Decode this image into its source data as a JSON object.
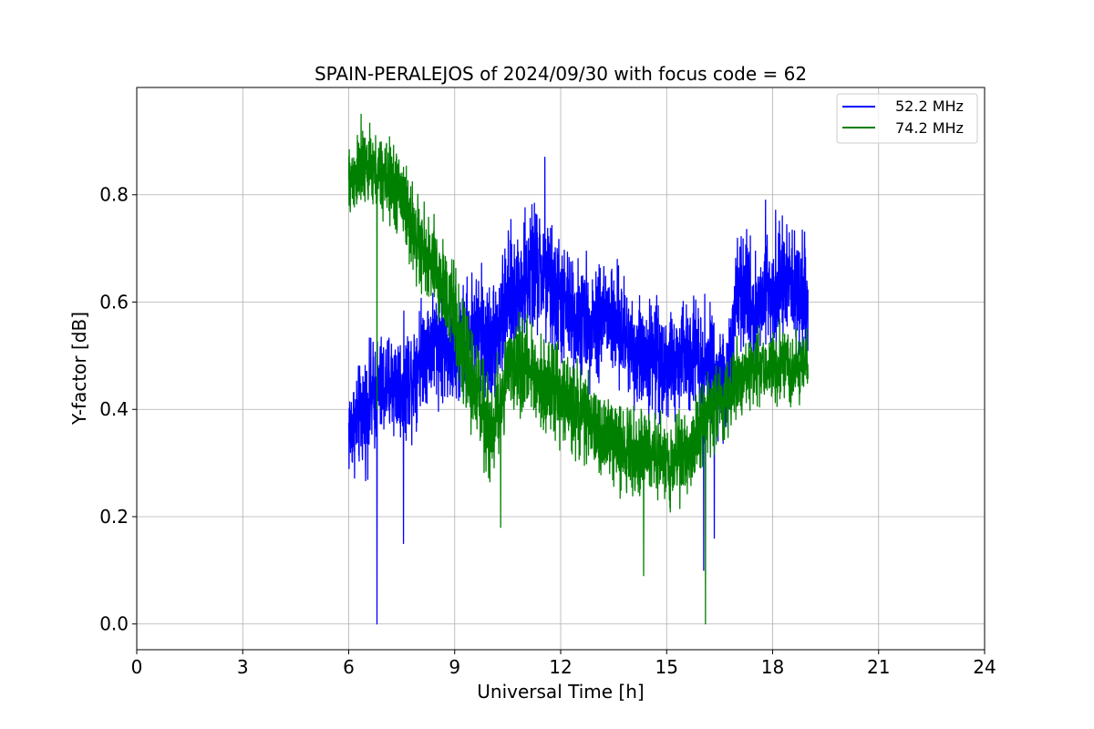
{
  "chart_data": {
    "type": "line",
    "title": "SPAIN-PERALEJOS of 2024/09/30 with focus code = 62",
    "xlabel": "Universal Time [h]",
    "ylabel": "Y-factor [dB]",
    "xlim": [
      0,
      24
    ],
    "ylim": [
      -0.048,
      1.0
    ],
    "xticks": [
      0,
      3,
      6,
      9,
      12,
      15,
      18,
      21,
      24
    ],
    "xtick_labels": [
      "0",
      "3",
      "6",
      "9",
      "12",
      "15",
      "18",
      "21",
      "24"
    ],
    "yticks": [
      0.0,
      0.2,
      0.4,
      0.6,
      0.8
    ],
    "ytick_labels": [
      "0.0",
      "0.2",
      "0.4",
      "0.6",
      "0.8"
    ],
    "grid": true,
    "legend_position": "top-right",
    "series": [
      {
        "name": "52.2 MHz",
        "color": "#0000ff",
        "x": [
          6.0,
          6.25,
          6.5,
          6.75,
          7.0,
          7.25,
          7.5,
          7.75,
          8.0,
          8.25,
          8.5,
          8.75,
          9.0,
          9.25,
          9.5,
          9.75,
          10.0,
          10.25,
          10.5,
          10.75,
          11.0,
          11.25,
          11.5,
          11.75,
          12.0,
          12.25,
          12.5,
          12.75,
          13.0,
          13.25,
          13.5,
          13.75,
          14.0,
          14.25,
          14.5,
          14.75,
          15.0,
          15.25,
          15.5,
          15.75,
          16.0,
          16.25,
          16.5,
          16.75,
          17.0,
          17.25,
          17.5,
          17.75,
          18.0,
          18.25,
          18.5,
          18.75,
          19.0
        ],
        "values": [
          0.36,
          0.38,
          0.4,
          0.43,
          0.44,
          0.45,
          0.44,
          0.46,
          0.5,
          0.52,
          0.53,
          0.52,
          0.5,
          0.52,
          0.55,
          0.54,
          0.52,
          0.55,
          0.6,
          0.62,
          0.64,
          0.66,
          0.65,
          0.62,
          0.6,
          0.58,
          0.57,
          0.56,
          0.57,
          0.58,
          0.56,
          0.54,
          0.52,
          0.5,
          0.5,
          0.5,
          0.48,
          0.48,
          0.5,
          0.52,
          0.5,
          0.48,
          0.46,
          0.45,
          0.6,
          0.62,
          0.58,
          0.62,
          0.63,
          0.64,
          0.63,
          0.62,
          0.6
        ],
        "spread": [
          0.13,
          0.13,
          0.15,
          0.15,
          0.14,
          0.15,
          0.14,
          0.15,
          0.14,
          0.14,
          0.15,
          0.15,
          0.16,
          0.15,
          0.16,
          0.17,
          0.16,
          0.16,
          0.17,
          0.17,
          0.17,
          0.18,
          0.17,
          0.17,
          0.17,
          0.16,
          0.16,
          0.15,
          0.16,
          0.16,
          0.15,
          0.15,
          0.15,
          0.15,
          0.15,
          0.15,
          0.14,
          0.14,
          0.15,
          0.15,
          0.15,
          0.15,
          0.14,
          0.14,
          0.15,
          0.15,
          0.15,
          0.15,
          0.15,
          0.15,
          0.15,
          0.15,
          0.15
        ],
        "spikes": [
          {
            "x": 6.8,
            "y": 0.0
          },
          {
            "x": 7.55,
            "y": 0.15
          },
          {
            "x": 11.55,
            "y": 0.87
          },
          {
            "x": 16.05,
            "y": 0.1
          },
          {
            "x": 16.35,
            "y": 0.16
          },
          {
            "x": 17.8,
            "y": 0.79
          }
        ]
      },
      {
        "name": "74.2 MHz",
        "color": "#008000",
        "x": [
          6.0,
          6.25,
          6.5,
          6.75,
          7.0,
          7.25,
          7.5,
          7.75,
          8.0,
          8.25,
          8.5,
          8.75,
          9.0,
          9.25,
          9.5,
          9.75,
          10.0,
          10.25,
          10.5,
          10.75,
          11.0,
          11.25,
          11.5,
          11.75,
          12.0,
          12.25,
          12.5,
          12.75,
          13.0,
          13.25,
          13.5,
          13.75,
          14.0,
          14.25,
          14.5,
          14.75,
          15.0,
          15.25,
          15.5,
          15.75,
          16.0,
          16.25,
          16.5,
          16.75,
          17.0,
          17.25,
          17.5,
          17.75,
          18.0,
          18.25,
          18.5,
          18.75,
          19.0
        ],
        "values": [
          0.82,
          0.84,
          0.85,
          0.84,
          0.83,
          0.82,
          0.8,
          0.75,
          0.7,
          0.68,
          0.65,
          0.62,
          0.57,
          0.5,
          0.45,
          0.42,
          0.35,
          0.4,
          0.47,
          0.48,
          0.48,
          0.47,
          0.45,
          0.44,
          0.42,
          0.41,
          0.4,
          0.38,
          0.36,
          0.35,
          0.34,
          0.33,
          0.33,
          0.32,
          0.32,
          0.31,
          0.3,
          0.31,
          0.32,
          0.33,
          0.38,
          0.4,
          0.41,
          0.42,
          0.46,
          0.47,
          0.48,
          0.48,
          0.48,
          0.48,
          0.48,
          0.48,
          0.49
        ],
        "spread": [
          0.1,
          0.1,
          0.1,
          0.1,
          0.11,
          0.11,
          0.12,
          0.12,
          0.12,
          0.12,
          0.13,
          0.13,
          0.14,
          0.14,
          0.14,
          0.14,
          0.14,
          0.13,
          0.12,
          0.12,
          0.12,
          0.12,
          0.12,
          0.12,
          0.12,
          0.12,
          0.12,
          0.11,
          0.11,
          0.11,
          0.11,
          0.11,
          0.11,
          0.11,
          0.11,
          0.11,
          0.11,
          0.11,
          0.11,
          0.11,
          0.11,
          0.11,
          0.1,
          0.1,
          0.1,
          0.1,
          0.1,
          0.1,
          0.1,
          0.1,
          0.1,
          0.1,
          0.1
        ],
        "spikes": [
          {
            "x": 6.35,
            "y": 0.95
          },
          {
            "x": 6.8,
            "y": 0.4
          },
          {
            "x": 10.3,
            "y": 0.18
          },
          {
            "x": 14.35,
            "y": 0.09
          },
          {
            "x": 16.1,
            "y": 0.0
          }
        ]
      }
    ]
  }
}
